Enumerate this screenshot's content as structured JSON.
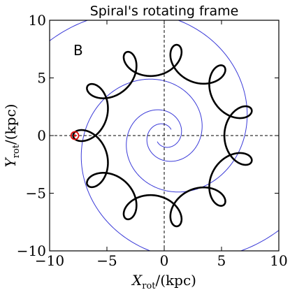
{
  "chart_data": {
    "type": "line",
    "title": "Spiral's rotating frame",
    "panel_label": "B",
    "xlabel": {
      "var": "X",
      "sub": "rot",
      "unit": "/(kpc)"
    },
    "ylabel": {
      "var": "Y",
      "sub": "rot",
      "unit": "/(kpc)"
    },
    "xlim": [
      -10,
      10
    ],
    "ylim": [
      -10,
      10
    ],
    "xticks": [
      -10,
      -5,
      0,
      5,
      10
    ],
    "yticks": [
      -10,
      -5,
      0,
      5,
      10
    ],
    "xtick_labels": [
      "−10",
      "−5",
      "0",
      "5",
      "10"
    ],
    "ytick_labels": [
      "−10",
      "−5",
      "0",
      "5",
      "10"
    ],
    "reference_lines": {
      "x": 0,
      "y": 0,
      "style": "dashed",
      "color": "#000000"
    },
    "colors": {
      "spiral_arms": "#3a3ad8",
      "orbit": "#000000",
      "marker": "#e01010"
    },
    "series": [
      {
        "kind": "spiral_arms",
        "arms": 2,
        "pitch_angle_deg": 14,
        "reference_radius_kpc": 8.0,
        "reference_phase_deg": 210,
        "r_min_kpc": 0.8,
        "r_max_kpc": 16
      },
      {
        "kind": "orbit",
        "guiding_radius_kpc": 6.6,
        "radial_amplitude_kpc": 1.35,
        "loops": 11,
        "start_point": [
          -8.0,
          0.0
        ]
      },
      {
        "kind": "marker",
        "x": -7.8,
        "y": 0.0,
        "symbol": "circle-dot"
      }
    ]
  }
}
